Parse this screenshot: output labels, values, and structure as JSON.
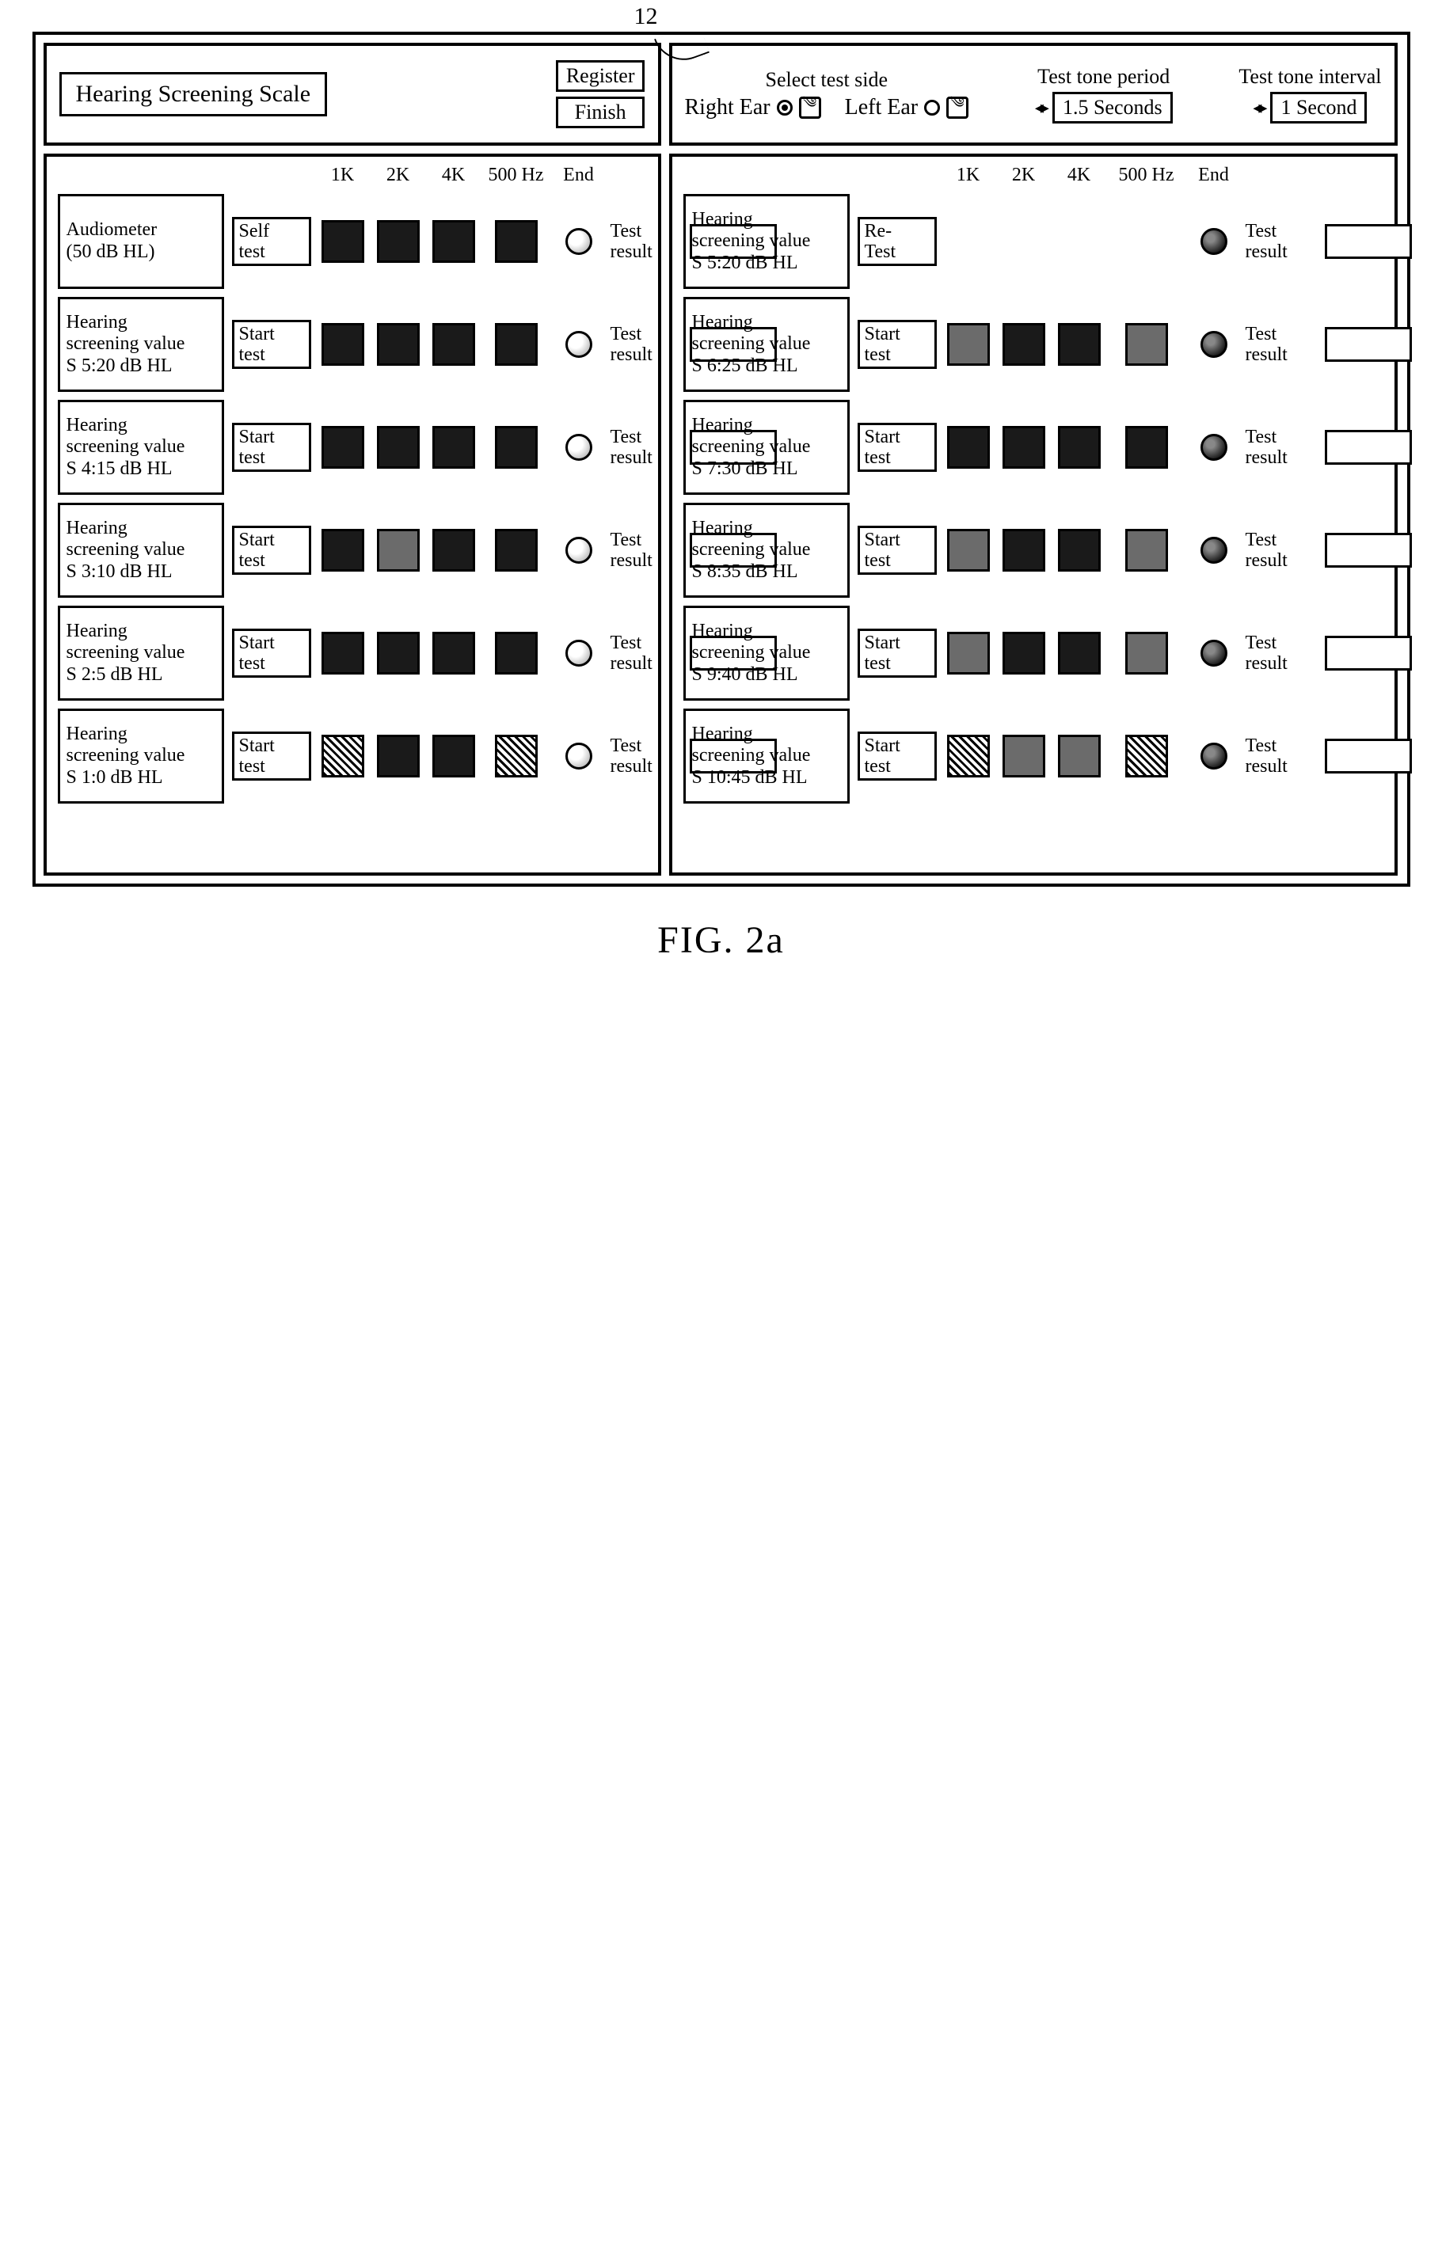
{
  "figure": {
    "reference": "12",
    "caption": "FIG. 2a"
  },
  "left": {
    "title": "Hearing Screening Scale",
    "register_btn": "Register",
    "finish_btn": "Finish",
    "freq_headers": [
      "1K",
      "2K",
      "4K",
      "500 Hz"
    ],
    "end_header": "End",
    "test_result_header": "Test result",
    "row0": {
      "label": "Audiometer\n(50 dB HL)",
      "action": "Self\ntest",
      "cells": [
        "dark",
        "dark",
        "dark",
        "dark"
      ],
      "dot": "light",
      "result_label": "Test result"
    },
    "rows": [
      {
        "label": "Hearing\nscreening value\nS 5:20 dB HL",
        "action": "Start\ntest",
        "cells": [
          "dark",
          "dark",
          "dark",
          "dark"
        ],
        "dot": "light",
        "result_label": "Test result"
      },
      {
        "label": "Hearing\nscreening value\nS 4:15 dB HL",
        "action": "Start\ntest",
        "cells": [
          "dark",
          "dark",
          "dark",
          "dark"
        ],
        "dot": "light",
        "result_label": "Test result"
      },
      {
        "label": "Hearing\nscreening value\nS 3:10 dB HL",
        "action": "Start\ntest",
        "cells": [
          "dark",
          "gray",
          "dark",
          "dark"
        ],
        "dot": "light",
        "result_label": "Test result"
      },
      {
        "label": "Hearing\nscreening value\nS 2:5 dB HL",
        "action": "Start\ntest",
        "cells": [
          "dark",
          "dark",
          "dark",
          "dark"
        ],
        "dot": "light",
        "result_label": "Test result"
      },
      {
        "label": "Hearing\nscreening value\nS 1:0 dB HL",
        "action": "Start\ntest",
        "cells": [
          "hatch",
          "dark",
          "dark",
          "hatch"
        ],
        "dot": "light",
        "result_label": "Test result"
      }
    ]
  },
  "right": {
    "select_side_label": "Select test side",
    "right_ear": "Right Ear",
    "left_ear": "Left Ear",
    "tone_period_label": "Test tone period",
    "tone_period_value": "1.5 Seconds",
    "tone_interval_label": "Test tone interval",
    "tone_interval_value": "1 Second",
    "freq_headers": [
      "1K",
      "2K",
      "4K",
      "500 Hz"
    ],
    "end_header": "End",
    "test_result_header": "Test result",
    "row0": {
      "label": "Hearing\nscreening value\nS 5:20 dB HL",
      "action": "Re-\nTest",
      "cells_empty": true,
      "dot": "dark",
      "result_label": "Test result"
    },
    "rows": [
      {
        "label": "Hearing\nscreening value\nS 6:25 dB HL",
        "action": "Start\ntest",
        "cells": [
          "gray",
          "dark",
          "dark",
          "gray"
        ],
        "dot": "dark",
        "result_label": "Test result"
      },
      {
        "label": "Hearing\nscreening value\nS 7:30 dB HL",
        "action": "Start\ntest",
        "cells": [
          "dark",
          "dark",
          "dark",
          "dark"
        ],
        "dot": "dark",
        "result_label": "Test result"
      },
      {
        "label": "Hearing\nscreening value\nS 8:35 dB HL",
        "action": "Start\ntest",
        "cells": [
          "gray",
          "dark",
          "dark",
          "gray"
        ],
        "dot": "dark",
        "result_label": "Test result"
      },
      {
        "label": "Hearing\nscreening value\nS 9:40 dB HL",
        "action": "Start\ntest",
        "cells": [
          "gray",
          "dark",
          "dark",
          "gray"
        ],
        "dot": "dark",
        "result_label": "Test result"
      },
      {
        "label": "Hearing\nscreening value\nS 10:45 dB HL",
        "action": "Start\ntest",
        "cells": [
          "hatch",
          "gray",
          "gray",
          "hatch"
        ],
        "dot": "dark",
        "result_label": "Test result"
      }
    ]
  },
  "colors": {
    "border": "#000000",
    "cell_dark": "#1a1a1a",
    "cell_gray": "#6b6b6b",
    "dot_light": "#bdbdbd",
    "dot_dark": "#111111",
    "background": "#ffffff"
  }
}
